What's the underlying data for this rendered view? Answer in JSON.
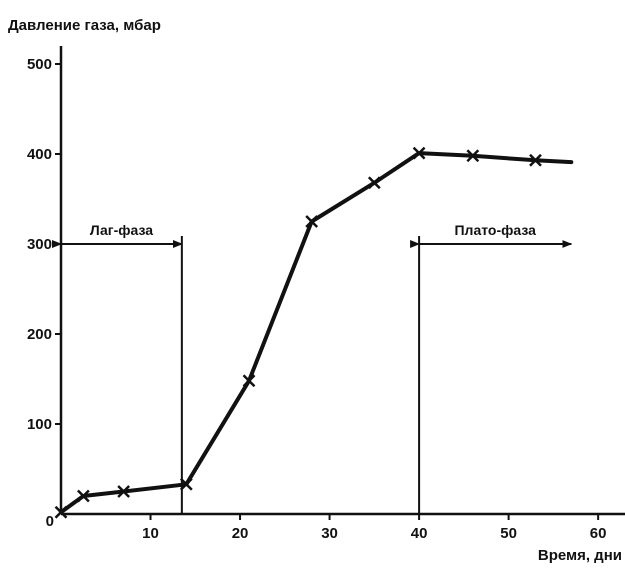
{
  "chart_data": {
    "type": "line",
    "title": "",
    "ylabel": "Давление газа, мбар",
    "xlabel": "Время, дни",
    "xlim": [
      0,
      63
    ],
    "ylim": [
      0,
      520
    ],
    "xticks": [
      0,
      10,
      20,
      30,
      40,
      50,
      60
    ],
    "yticks": [
      0,
      100,
      200,
      300,
      400,
      500
    ],
    "x_tick_labels": [
      "",
      "10",
      "20",
      "30",
      "40",
      "50",
      "60"
    ],
    "y_tick_labels": [
      "0",
      "100",
      "200",
      "300",
      "400",
      "500"
    ],
    "grid": false,
    "line_color": "#111111",
    "series": [
      {
        "points": [
          [
            0,
            2
          ],
          [
            2.5,
            20
          ],
          [
            7,
            25
          ],
          [
            14,
            33
          ],
          [
            21,
            148
          ],
          [
            28,
            325
          ],
          [
            35,
            368
          ],
          [
            40,
            401
          ],
          [
            46,
            398
          ],
          [
            53,
            393
          ],
          [
            57,
            391
          ]
        ],
        "markers": [
          [
            0,
            2
          ],
          [
            2.5,
            20
          ],
          [
            7,
            25
          ],
          [
            14,
            33
          ],
          [
            21,
            148
          ],
          [
            28,
            325
          ],
          [
            35,
            368
          ],
          [
            40,
            401
          ],
          [
            46,
            398
          ],
          [
            53,
            393
          ]
        ]
      }
    ],
    "annotations": [
      {
        "label": "Лаг-фаза",
        "x_start": 0,
        "x_end": 13.5,
        "y": 300,
        "divider_x": 13.5
      },
      {
        "label": "Плато-фаза",
        "x_start": 40,
        "x_end": 57,
        "y": 300,
        "divider_x": 40
      }
    ]
  }
}
